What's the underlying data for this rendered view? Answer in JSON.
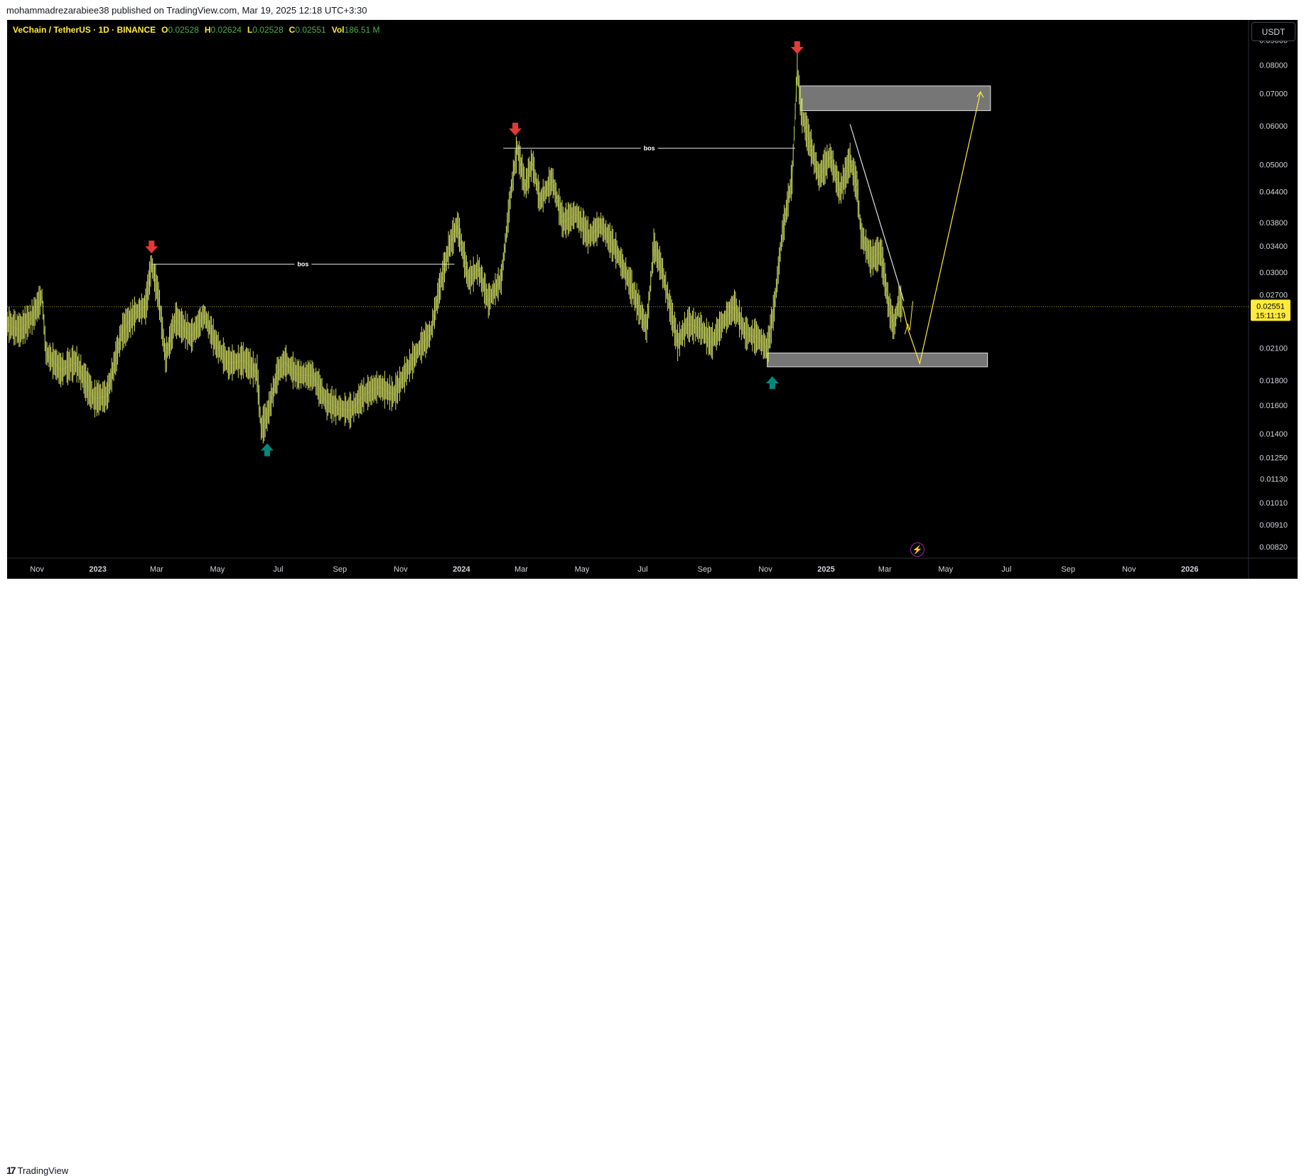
{
  "header": {
    "published_text": "mohammadrezarabiee38 published on TradingView.com, Mar 19, 2025 12:18 UTC+3:30"
  },
  "legend": {
    "symbol": "VeChain / TetherUS · 1D · BINANCE",
    "o_label": "O",
    "o_value": "0.02528",
    "h_label": "H",
    "h_value": "0.02624",
    "l_label": "L",
    "l_value": "0.02528",
    "c_label": "C",
    "c_value": "0.02551",
    "vol_label": "Vol",
    "vol_value": "186.51 M"
  },
  "currency_button": "USDT",
  "footer": {
    "logo_text": "TradingView",
    "logo_mark": "17"
  },
  "colors": {
    "background": "#000000",
    "price_line": "#e6ee6a",
    "price_line_green": "#8bc34a",
    "arrow_down": "#e53935",
    "arrow_up": "#00897b",
    "label_bg": "#ffeb3b",
    "zone_fill": "#9e9e9e",
    "projection": "#ffeb3b"
  },
  "chart_data": {
    "type": "line",
    "title": "",
    "xlabel": "",
    "ylabel": "",
    "scale": "log",
    "x_ticks": [
      "Nov",
      "2023",
      "Mar",
      "May",
      "Jul",
      "Sep",
      "Nov",
      "2024",
      "Mar",
      "May",
      "Jul",
      "Sep",
      "Nov",
      "2025",
      "Mar",
      "May",
      "Jul",
      "Sep",
      "Nov",
      "2026"
    ],
    "x_tick_dates": [
      "2022-11-01",
      "2023-01-01",
      "2023-03-01",
      "2023-05-01",
      "2023-07-01",
      "2023-09-01",
      "2023-11-01",
      "2024-01-01",
      "2024-03-01",
      "2024-05-01",
      "2024-07-01",
      "2024-09-01",
      "2024-11-01",
      "2025-01-01",
      "2025-03-01",
      "2025-05-01",
      "2025-07-01",
      "2025-09-01",
      "2025-11-01",
      "2026-01-01"
    ],
    "y_ticks": [
      "0.09000",
      "0.08000",
      "0.07000",
      "0.06000",
      "0.05000",
      "0.04400",
      "0.03800",
      "0.03400",
      "0.03000",
      "0.02700",
      "0.02100",
      "0.01800",
      "0.01600",
      "0.01400",
      "0.01250",
      "0.01130",
      "0.01010",
      "0.00910",
      "0.00820"
    ],
    "ylim": [
      0.0079,
      0.092
    ],
    "current_price": "0.02551",
    "countdown": "15:11:19",
    "series": [
      {
        "points": [
          [
            "2022-10-02",
            0.0235
          ],
          [
            "2022-10-15",
            0.0228
          ],
          [
            "2022-10-28",
            0.0244
          ],
          [
            "2022-11-06",
            0.0268
          ],
          [
            "2022-11-10",
            0.0205
          ],
          [
            "2022-11-25",
            0.0189
          ],
          [
            "2022-12-10",
            0.0196
          ],
          [
            "2022-12-28",
            0.0165
          ],
          [
            "2023-01-10",
            0.0167
          ],
          [
            "2023-01-25",
            0.0225
          ],
          [
            "2023-02-08",
            0.0248
          ],
          [
            "2023-02-18",
            0.0255
          ],
          [
            "2023-02-24",
            0.0312
          ],
          [
            "2023-03-03",
            0.0268
          ],
          [
            "2023-03-10",
            0.02
          ],
          [
            "2023-03-20",
            0.024
          ],
          [
            "2023-04-05",
            0.0222
          ],
          [
            "2023-04-18",
            0.0245
          ],
          [
            "2023-04-30",
            0.0213
          ],
          [
            "2023-05-12",
            0.0195
          ],
          [
            "2023-05-28",
            0.0198
          ],
          [
            "2023-06-10",
            0.0186
          ],
          [
            "2023-06-14",
            0.0143
          ],
          [
            "2023-06-20",
            0.0152
          ],
          [
            "2023-07-01",
            0.0188
          ],
          [
            "2023-07-08",
            0.0196
          ],
          [
            "2023-07-20",
            0.0185
          ],
          [
            "2023-08-05",
            0.0184
          ],
          [
            "2023-08-18",
            0.0163
          ],
          [
            "2023-08-30",
            0.0158
          ],
          [
            "2023-09-12",
            0.0156
          ],
          [
            "2023-09-25",
            0.0168
          ],
          [
            "2023-10-10",
            0.0175
          ],
          [
            "2023-10-25",
            0.0168
          ],
          [
            "2023-11-05",
            0.0185
          ],
          [
            "2023-11-20",
            0.021
          ],
          [
            "2023-12-01",
            0.0225
          ],
          [
            "2023-12-10",
            0.0278
          ],
          [
            "2023-12-20",
            0.034
          ],
          [
            "2023-12-28",
            0.0375
          ],
          [
            "2024-01-08",
            0.029
          ],
          [
            "2024-01-18",
            0.0305
          ],
          [
            "2024-01-28",
            0.0262
          ],
          [
            "2024-02-10",
            0.029
          ],
          [
            "2024-02-20",
            0.0445
          ],
          [
            "2024-02-26",
            0.054
          ],
          [
            "2024-03-05",
            0.045
          ],
          [
            "2024-03-12",
            0.0505
          ],
          [
            "2024-03-20",
            0.042
          ],
          [
            "2024-04-01",
            0.0465
          ],
          [
            "2024-04-12",
            0.038
          ],
          [
            "2024-04-25",
            0.0395
          ],
          [
            "2024-05-08",
            0.0355
          ],
          [
            "2024-05-20",
            0.0375
          ],
          [
            "2024-06-05",
            0.033
          ],
          [
            "2024-06-18",
            0.0285
          ],
          [
            "2024-07-05",
            0.023
          ],
          [
            "2024-07-12",
            0.034
          ],
          [
            "2024-07-20",
            0.0305
          ],
          [
            "2024-08-05",
            0.0215
          ],
          [
            "2024-08-15",
            0.0235
          ],
          [
            "2024-08-28",
            0.023
          ],
          [
            "2024-09-08",
            0.0215
          ],
          [
            "2024-09-20",
            0.0238
          ],
          [
            "2024-10-01",
            0.0255
          ],
          [
            "2024-10-12",
            0.0225
          ],
          [
            "2024-10-25",
            0.022
          ],
          [
            "2024-11-03",
            0.0208
          ],
          [
            "2024-11-10",
            0.0255
          ],
          [
            "2024-11-18",
            0.036
          ],
          [
            "2024-11-28",
            0.047
          ],
          [
            "2024-12-03",
            0.079
          ],
          [
            "2024-12-07",
            0.064
          ],
          [
            "2024-12-15",
            0.056
          ],
          [
            "2024-12-25",
            0.047
          ],
          [
            "2025-01-05",
            0.052
          ],
          [
            "2025-01-15",
            0.044
          ],
          [
            "2025-01-25",
            0.051
          ],
          [
            "2025-02-01",
            0.045
          ],
          [
            "2025-02-05",
            0.036
          ],
          [
            "2025-02-15",
            0.032
          ],
          [
            "2025-02-25",
            0.033
          ],
          [
            "2025-03-05",
            0.0255
          ],
          [
            "2025-03-10",
            0.0232
          ],
          [
            "2025-03-15",
            0.0262
          ],
          [
            "2025-03-19",
            0.02551
          ]
        ]
      }
    ],
    "annotations": {
      "bos_label": "bos",
      "bos_lines": [
        {
          "x_start": "2023-02-24",
          "x_end": "2023-12-25",
          "y": 0.0312
        },
        {
          "x_start": "2024-02-12",
          "x_end": "2024-12-01",
          "y": 0.054
        }
      ],
      "arrows_down": [
        {
          "x": "2023-02-24",
          "y": 0.0335
        },
        {
          "x": "2024-02-24",
          "y": 0.0585
        },
        {
          "x": "2024-12-03",
          "y": 0.086
        }
      ],
      "arrows_up": [
        {
          "x": "2023-06-20",
          "y": 0.0131
        },
        {
          "x": "2024-11-08",
          "y": 0.018
        }
      ],
      "zones": [
        {
          "x_start": "2024-12-06",
          "x_end": "2025-06-15",
          "y_low": 0.0645,
          "y_high": 0.0725
        },
        {
          "x_start": "2024-11-03",
          "x_end": "2025-06-12",
          "y_low": 0.0192,
          "y_high": 0.0205
        }
      ],
      "trendline": [
        [
          "2025-01-25",
          0.0605
        ],
        [
          "2025-03-20",
          0.0262
        ]
      ],
      "projection": [
        [
          "2025-03-19",
          0.02551
        ],
        [
          "2025-03-24",
          0.023
        ],
        [
          "2025-04-05",
          0.0195
        ],
        [
          "2025-06-05",
          0.0705
        ]
      ],
      "projection_small": [
        [
          "2025-03-21",
          0.0224
        ],
        [
          "2025-03-24",
          0.0235
        ],
        [
          "2025-03-26",
          0.0228
        ],
        [
          "2025-03-29",
          0.0262
        ]
      ]
    }
  }
}
